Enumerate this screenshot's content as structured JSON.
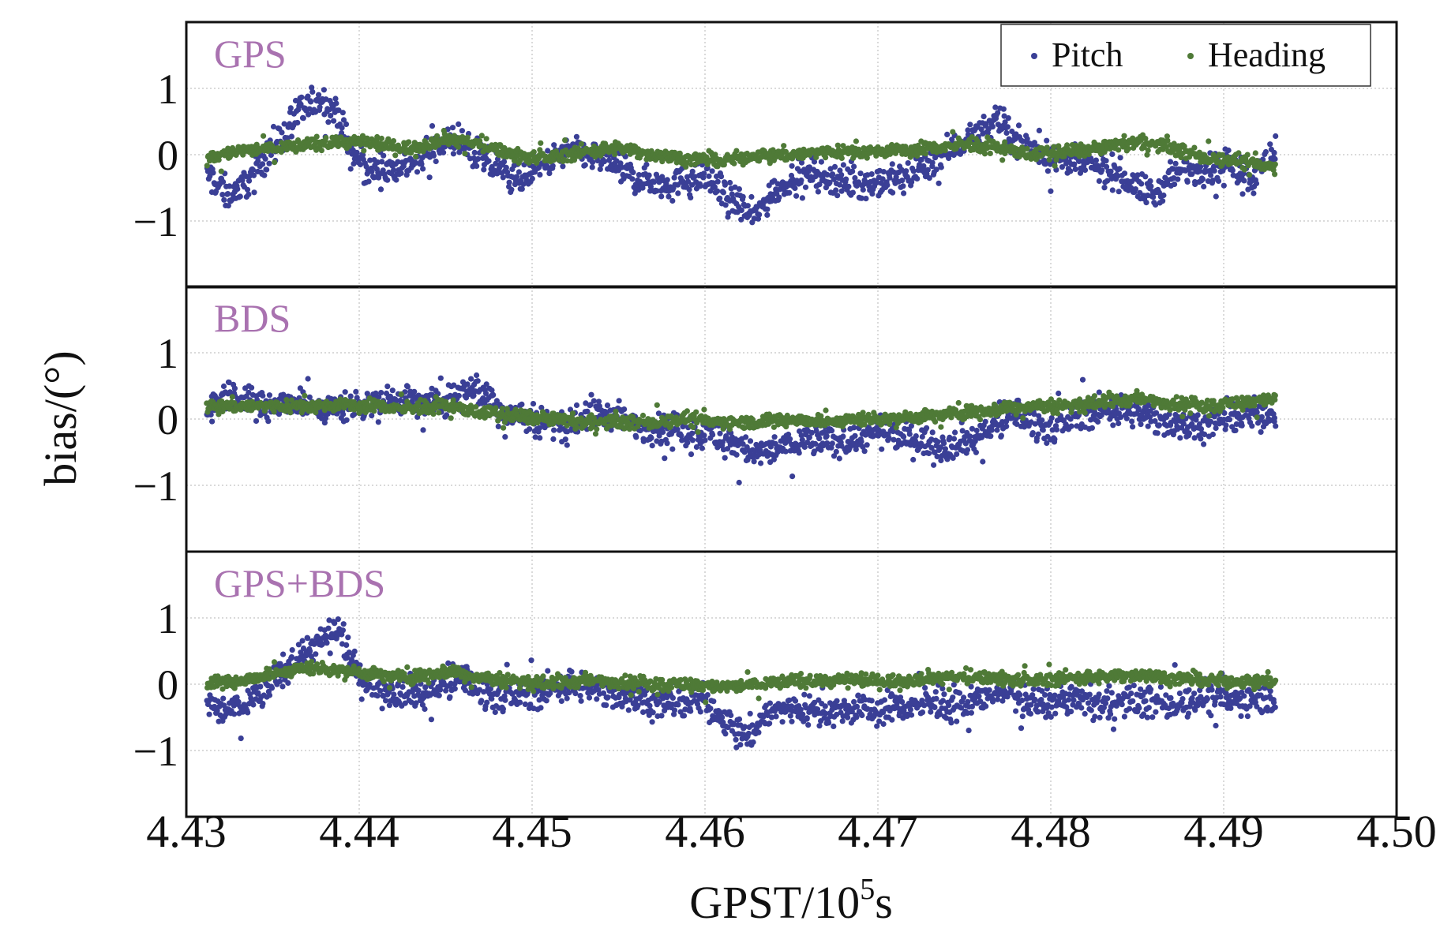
{
  "chart_data": {
    "type": "scatter",
    "xlabel": "GPST/10",
    "xlabel_exponent": "5",
    "xlabel_unit": "s",
    "ylabel": "bias/(°)",
    "xlim": [
      4.43,
      4.5
    ],
    "ylim": [
      -2,
      2
    ],
    "x_ticks": [
      "4.43",
      "4.44",
      "4.45",
      "4.46",
      "4.47",
      "4.48",
      "4.49",
      "4.50"
    ],
    "y_ticks": [
      "1",
      "0",
      "−1"
    ],
    "y_tick_values": [
      1,
      0,
      -1
    ],
    "grid": true,
    "legend": {
      "position": "top-right",
      "entries": [
        {
          "name": "Pitch",
          "color": "#3a3f96"
        },
        {
          "name": "Heading",
          "color": "#4f7a37"
        }
      ]
    },
    "title_color": "#a972b0",
    "panels": [
      {
        "title": "GPS",
        "x_range": [
          4.4312,
          4.493
        ],
        "series": [
          {
            "name": "Pitch",
            "color": "#3a3f96",
            "x": [
              4.4312,
              4.4318,
              4.4325,
              4.4335,
              4.4345,
              4.4355,
              4.4365,
              4.4372,
              4.438,
              4.4386,
              4.4395,
              4.4405,
              4.442,
              4.4435,
              4.445,
              4.446,
              4.4475,
              4.449,
              4.4505,
              4.452,
              4.454,
              4.456,
              4.458,
              4.46,
              4.461,
              4.462,
              4.4628,
              4.4638,
              4.465,
              4.4665,
              4.468,
              4.47,
              4.472,
              4.474,
              4.476,
              4.4768,
              4.478,
              4.48,
              4.482,
              4.484,
              4.485,
              4.486,
              4.4875,
              4.489,
              4.4905,
              4.4918,
              4.493
            ],
            "y": [
              -0.3,
              -0.45,
              -0.6,
              -0.4,
              -0.05,
              0.25,
              0.6,
              0.75,
              0.8,
              0.65,
              0.05,
              -0.25,
              -0.2,
              -0.1,
              0.2,
              0.15,
              -0.15,
              -0.35,
              -0.2,
              0.05,
              -0.05,
              -0.35,
              -0.45,
              -0.35,
              -0.55,
              -0.75,
              -0.95,
              -0.6,
              -0.35,
              -0.3,
              -0.4,
              -0.45,
              -0.3,
              0.05,
              0.35,
              0.55,
              0.2,
              -0.05,
              -0.15,
              -0.3,
              -0.5,
              -0.6,
              -0.25,
              -0.2,
              -0.15,
              -0.35,
              0.1
            ]
          },
          {
            "name": "Heading",
            "color": "#4f7a37",
            "x": [
              4.4312,
              4.433,
              4.435,
              4.437,
              4.439,
              4.441,
              4.443,
              4.445,
              4.447,
              4.449,
              4.451,
              4.453,
              4.455,
              4.457,
              4.459,
              4.461,
              4.463,
              4.465,
              4.467,
              4.469,
              4.471,
              4.473,
              4.475,
              4.477,
              4.479,
              4.481,
              4.483,
              4.485,
              4.487,
              4.489,
              4.491,
              4.493
            ],
            "y": [
              -0.05,
              0.05,
              0.1,
              0.15,
              0.2,
              0.15,
              0.1,
              0.25,
              0.15,
              0.0,
              -0.05,
              0.05,
              0.1,
              0.0,
              -0.05,
              -0.1,
              0.0,
              0.0,
              0.05,
              0.05,
              0.05,
              0.1,
              0.15,
              0.1,
              0.0,
              0.05,
              0.1,
              0.2,
              0.1,
              -0.05,
              -0.1,
              -0.2
            ]
          }
        ]
      },
      {
        "title": "BDS",
        "x_range": [
          4.4312,
          4.493
        ],
        "series": [
          {
            "name": "Pitch",
            "color": "#3a3f96",
            "x": [
              4.4312,
              4.4325,
              4.434,
              4.436,
              4.438,
              4.44,
              4.442,
              4.444,
              4.4455,
              4.4465,
              4.448,
              4.45,
              4.452,
              4.454,
              4.456,
              4.458,
              4.46,
              4.462,
              4.463,
              4.464,
              4.466,
              4.468,
              4.47,
              4.472,
              4.474,
              4.476,
              4.478,
              4.48,
              4.482,
              4.484,
              4.486,
              4.488,
              4.49,
              4.4915,
              4.493
            ],
            "y": [
              0.15,
              0.4,
              0.2,
              0.25,
              0.15,
              0.2,
              0.3,
              0.25,
              0.3,
              0.55,
              0.15,
              0.0,
              -0.1,
              0.1,
              -0.1,
              -0.15,
              -0.2,
              -0.4,
              -0.55,
              -0.45,
              -0.3,
              -0.35,
              -0.2,
              -0.3,
              -0.4,
              -0.25,
              0.1,
              -0.15,
              0.1,
              0.15,
              0.0,
              -0.1,
              0.0,
              0.05,
              0.1
            ]
          },
          {
            "name": "Heading",
            "color": "#4f7a37",
            "x": [
              4.4312,
              4.433,
              4.435,
              4.437,
              4.439,
              4.441,
              4.443,
              4.445,
              4.447,
              4.449,
              4.451,
              4.453,
              4.455,
              4.457,
              4.459,
              4.461,
              4.463,
              4.465,
              4.467,
              4.469,
              4.471,
              4.473,
              4.475,
              4.477,
              4.479,
              4.481,
              4.483,
              4.485,
              4.487,
              4.489,
              4.491,
              4.493
            ],
            "y": [
              0.2,
              0.2,
              0.2,
              0.2,
              0.2,
              0.2,
              0.15,
              0.2,
              0.1,
              0.05,
              0.0,
              -0.05,
              -0.05,
              -0.05,
              0.0,
              -0.05,
              -0.05,
              0.0,
              -0.05,
              0.0,
              0.0,
              0.05,
              0.1,
              0.15,
              0.2,
              0.2,
              0.25,
              0.3,
              0.25,
              0.2,
              0.25,
              0.3
            ]
          }
        ]
      },
      {
        "title": "GPS+BDS",
        "x_range": [
          4.4312,
          4.493
        ],
        "series": [
          {
            "name": "Pitch",
            "color": "#3a3f96",
            "x": [
              4.4312,
              4.432,
              4.433,
              4.4345,
              4.436,
              4.437,
              4.438,
              4.4388,
              4.44,
              4.442,
              4.444,
              4.446,
              4.448,
              4.45,
              4.452,
              4.454,
              4.456,
              4.458,
              4.46,
              4.4615,
              4.4625,
              4.4635,
              4.465,
              4.467,
              4.469,
              4.471,
              4.473,
              4.475,
              4.477,
              4.479,
              4.481,
              4.483,
              4.485,
              4.487,
              4.489,
              4.491,
              4.493
            ],
            "y": [
              -0.3,
              -0.4,
              -0.35,
              -0.1,
              0.3,
              0.55,
              0.65,
              0.8,
              0.1,
              -0.1,
              -0.15,
              0.1,
              -0.2,
              -0.15,
              0.0,
              -0.1,
              -0.2,
              -0.3,
              -0.25,
              -0.6,
              -0.8,
              -0.45,
              -0.35,
              -0.4,
              -0.4,
              -0.35,
              -0.3,
              -0.35,
              -0.05,
              -0.3,
              -0.25,
              -0.3,
              -0.25,
              -0.3,
              -0.2,
              -0.25,
              -0.2
            ]
          },
          {
            "name": "Heading",
            "color": "#4f7a37",
            "x": [
              4.4312,
              4.433,
              4.435,
              4.437,
              4.439,
              4.441,
              4.443,
              4.445,
              4.447,
              4.449,
              4.451,
              4.453,
              4.455,
              4.457,
              4.459,
              4.461,
              4.463,
              4.465,
              4.467,
              4.469,
              4.471,
              4.473,
              4.475,
              4.477,
              4.479,
              4.481,
              4.483,
              4.485,
              4.487,
              4.489,
              4.491,
              4.493
            ],
            "y": [
              0.0,
              0.05,
              0.15,
              0.25,
              0.2,
              0.15,
              0.1,
              0.2,
              0.1,
              0.05,
              0.0,
              0.05,
              0.05,
              0.0,
              0.0,
              -0.05,
              0.0,
              0.05,
              0.05,
              0.05,
              0.05,
              0.1,
              0.1,
              0.1,
              0.05,
              0.1,
              0.1,
              0.15,
              0.1,
              0.05,
              0.05,
              0.05
            ]
          }
        ]
      }
    ]
  }
}
